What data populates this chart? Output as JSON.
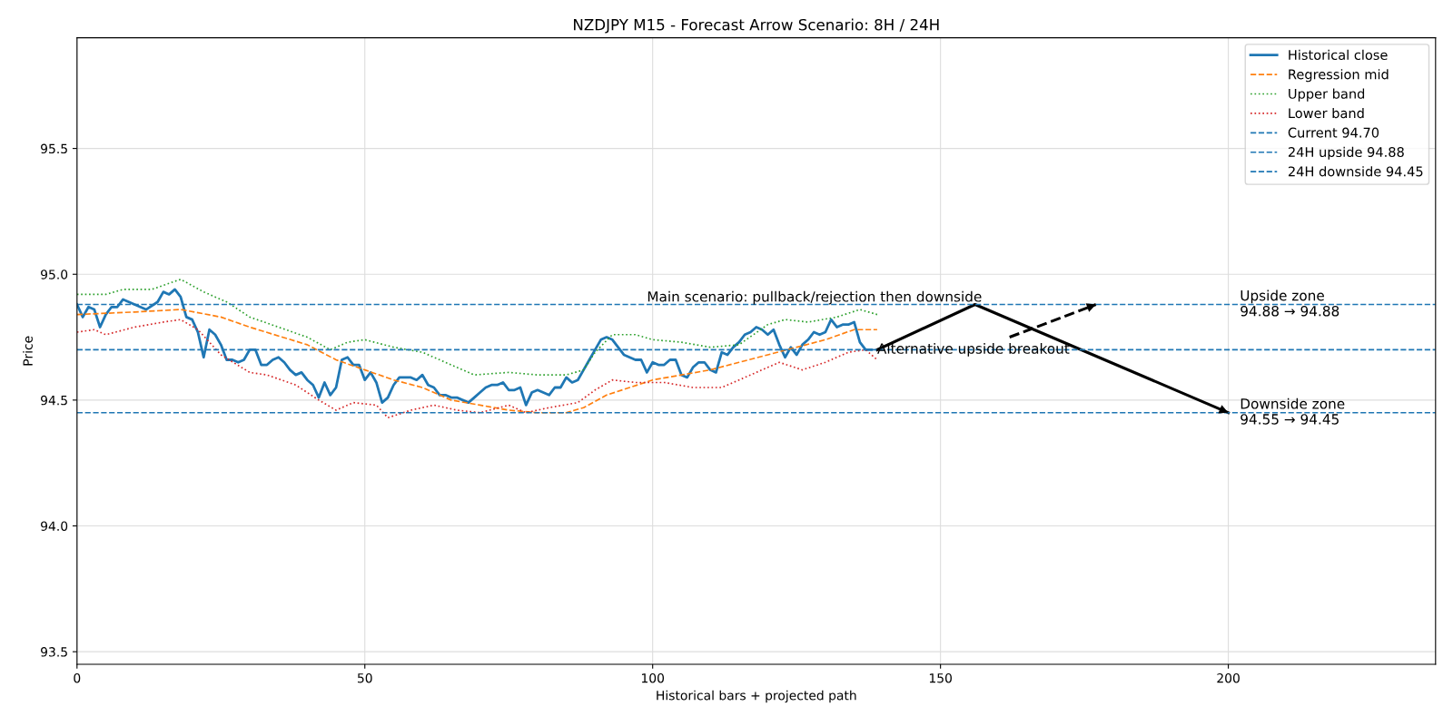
{
  "chart_data": {
    "type": "line",
    "title": "NZDJPY M15 - Forecast Arrow Scenario: 8H / 24H",
    "xlabel": "Historical bars + projected path",
    "ylabel": "Price",
    "xlim": [
      0,
      236
    ],
    "ylim": [
      93.45,
      95.94
    ],
    "xticks": [
      0,
      50,
      100,
      150,
      200
    ],
    "yticks": [
      {
        "value": 93.5,
        "label": "93.5"
      },
      {
        "value": 94.0,
        "label": "94.0"
      },
      {
        "value": 94.5,
        "label": "94.5"
      },
      {
        "value": 95.0,
        "label": "95.0"
      },
      {
        "value": 95.5,
        "label": "95.5"
      }
    ],
    "grid": true,
    "legend": "top right",
    "series": [
      {
        "name": "Historical close",
        "color": "#1f77b4",
        "line_style": "solid",
        "x": [
          0,
          1,
          2,
          3,
          4,
          5,
          6,
          7,
          8,
          10,
          12,
          14,
          15,
          16,
          17,
          18,
          19,
          20,
          21,
          22,
          23,
          24,
          25,
          26,
          27,
          28,
          29,
          30,
          31,
          32,
          33,
          34,
          35,
          36,
          37,
          38,
          39,
          40,
          41,
          42,
          43,
          44,
          45,
          46,
          47,
          48,
          49,
          50,
          51,
          52,
          53,
          54,
          55,
          56,
          57,
          58,
          59,
          60,
          61,
          62,
          63,
          64,
          65,
          66,
          67,
          68,
          69,
          70,
          71,
          72,
          73,
          74,
          75,
          76,
          77,
          78,
          79,
          80,
          81,
          82,
          83,
          84,
          85,
          86,
          87,
          88,
          89,
          90,
          91,
          92,
          93,
          94,
          95,
          96,
          97,
          98,
          99,
          100,
          101,
          102,
          103,
          104,
          105,
          106,
          107,
          108,
          109,
          110,
          111,
          112,
          113,
          114,
          115,
          116,
          117,
          118,
          119,
          120,
          121,
          122,
          123,
          124,
          125,
          126,
          127,
          128,
          129,
          130,
          131,
          132,
          133,
          134,
          135,
          136,
          137,
          138
        ],
        "values": [
          94.88,
          94.83,
          94.87,
          94.86,
          94.79,
          94.84,
          94.87,
          94.87,
          94.9,
          94.88,
          94.86,
          94.89,
          94.93,
          94.92,
          94.94,
          94.91,
          94.83,
          94.82,
          94.77,
          94.67,
          94.78,
          94.76,
          94.72,
          94.66,
          94.66,
          94.65,
          94.66,
          94.7,
          94.7,
          94.64,
          94.64,
          94.66,
          94.67,
          94.65,
          94.62,
          94.6,
          94.61,
          94.58,
          94.56,
          94.51,
          94.57,
          94.52,
          94.55,
          94.66,
          94.67,
          94.64,
          94.64,
          94.58,
          94.61,
          94.57,
          94.49,
          94.51,
          94.56,
          94.59,
          94.59,
          94.59,
          94.58,
          94.6,
          94.56,
          94.55,
          94.52,
          94.52,
          94.51,
          94.51,
          94.5,
          94.49,
          94.51,
          94.53,
          94.55,
          94.56,
          94.56,
          94.57,
          94.54,
          94.54,
          94.55,
          94.48,
          94.53,
          94.54,
          94.53,
          94.52,
          94.55,
          94.55,
          94.59,
          94.57,
          94.58,
          94.62,
          94.66,
          94.7,
          94.74,
          94.75,
          94.74,
          94.71,
          94.68,
          94.67,
          94.66,
          94.66,
          94.61,
          94.65,
          94.64,
          94.64,
          94.66,
          94.66,
          94.6,
          94.59,
          94.63,
          94.65,
          94.65,
          94.62,
          94.61,
          94.69,
          94.68,
          94.71,
          94.73,
          94.76,
          94.77,
          94.79,
          94.78,
          94.76,
          94.78,
          94.72,
          94.67,
          94.71,
          94.68,
          94.72,
          94.74,
          94.77,
          94.76,
          94.77,
          94.82,
          94.79,
          94.8,
          94.8,
          94.81,
          94.73,
          94.7,
          94.7
        ]
      },
      {
        "name": "Regression mid",
        "color": "#ff7f0e",
        "line_style": "dashed",
        "x": [
          0,
          10,
          18,
          25,
          30,
          40,
          45,
          50,
          55,
          60,
          65,
          70,
          75,
          80,
          85,
          88,
          92,
          96,
          100,
          105,
          110,
          115,
          120,
          125,
          130,
          135,
          139
        ],
        "values": [
          94.84,
          94.85,
          94.86,
          94.83,
          94.79,
          94.72,
          94.66,
          94.62,
          94.58,
          94.55,
          94.5,
          94.48,
          94.46,
          94.45,
          94.45,
          94.47,
          94.52,
          94.55,
          94.58,
          94.6,
          94.62,
          94.65,
          94.68,
          94.71,
          94.74,
          94.78,
          94.78
        ]
      },
      {
        "name": "Upper band",
        "color": "#2ca02c",
        "line_style": "dotted",
        "x": [
          0,
          5,
          8,
          13,
          18,
          22,
          26,
          30,
          35,
          40,
          44,
          47,
          50,
          55,
          60,
          65,
          69,
          75,
          80,
          85,
          88,
          90,
          93,
          97,
          100,
          105,
          110,
          115,
          120,
          123,
          127,
          132,
          136,
          139
        ],
        "values": [
          94.92,
          94.92,
          94.94,
          94.94,
          94.98,
          94.93,
          94.89,
          94.83,
          94.79,
          94.75,
          94.7,
          94.73,
          94.74,
          94.71,
          94.69,
          94.64,
          94.6,
          94.61,
          94.6,
          94.6,
          94.62,
          94.69,
          94.76,
          94.76,
          94.74,
          94.73,
          94.71,
          94.72,
          94.8,
          94.82,
          94.81,
          94.83,
          94.86,
          94.84
        ]
      },
      {
        "name": "Lower band",
        "color": "#d62728",
        "line_style": "dotted",
        "x": [
          0,
          3,
          5,
          10,
          15,
          18,
          21,
          25,
          30,
          33,
          38,
          42,
          45,
          48,
          52,
          54,
          58,
          62,
          66,
          70,
          75,
          78,
          82,
          87,
          90,
          93,
          97,
          102,
          107,
          112,
          117,
          122,
          126,
          130,
          134,
          137,
          139
        ],
        "values": [
          94.77,
          94.78,
          94.76,
          94.79,
          94.81,
          94.82,
          94.78,
          94.68,
          94.61,
          94.6,
          94.56,
          94.5,
          94.46,
          94.49,
          94.48,
          94.43,
          94.46,
          94.48,
          94.46,
          94.45,
          94.48,
          94.45,
          94.47,
          94.49,
          94.54,
          94.58,
          94.57,
          94.57,
          94.55,
          94.55,
          94.6,
          94.65,
          94.62,
          94.65,
          94.69,
          94.7,
          94.66
        ]
      },
      {
        "type": "line",
        "color": "#000000",
        "line_style": "solid",
        "x": [
          139,
          156,
          200
        ],
        "values": [
          94.7,
          94.88,
          94.45
        ]
      },
      {
        "type": "line",
        "color": "#000000",
        "line_style": "dashed",
        "x": [
          162,
          177
        ],
        "values": [
          94.75,
          94.88
        ]
      }
    ],
    "ref_lines": [
      {
        "axis": "y",
        "value": 94.7,
        "label": "Current 94.70",
        "color": "#1f77b4",
        "line_style": "dashed"
      },
      {
        "axis": "y",
        "value": 94.88,
        "label": "24H upside 94.88",
        "color": "#1f77b4",
        "line_style": "dashed"
      },
      {
        "axis": "y",
        "value": 94.45,
        "label": "24H downside 94.45",
        "color": "#1f77b4",
        "line_style": "dashed"
      }
    ],
    "annotations": [
      {
        "text": "Main scenario: pullback/rejection then downside",
        "x": 99,
        "y": 94.88
      },
      {
        "text": "Alternative upside breakout",
        "x": 139,
        "y": 94.7
      },
      {
        "text": "Upside zone\n94.88 → 94.88",
        "x": 202,
        "y": 94.88
      },
      {
        "text": "Downside zone\n94.55 → 94.45",
        "x": 202,
        "y": 94.45
      }
    ]
  }
}
